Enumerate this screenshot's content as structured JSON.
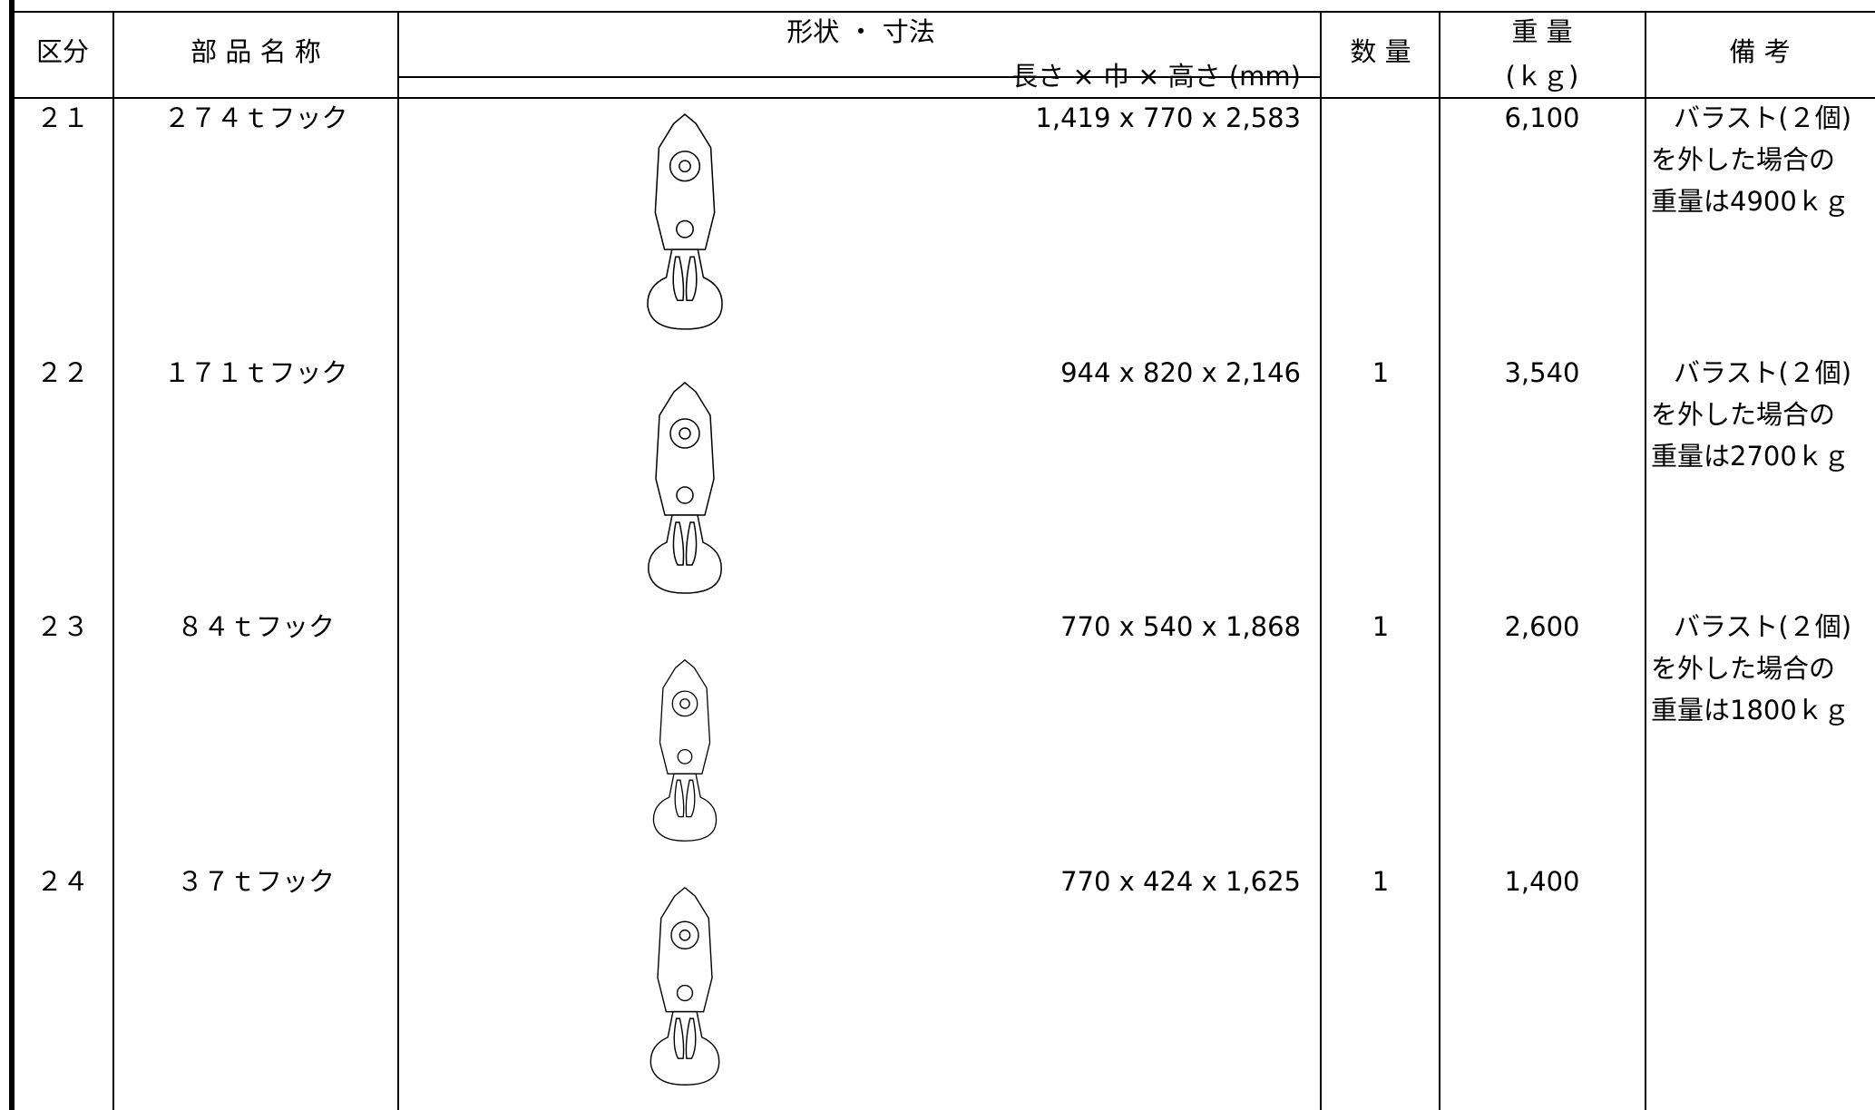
{
  "header": {
    "kubun": "区分",
    "name": "部 品 名 称",
    "shape": "形状 ・ 寸法",
    "dims": "長さ × 巾 × 高さ (mm)",
    "qty": "数 量",
    "weight": "重 量",
    "weight_unit": "(ｋｇ)",
    "remarks": "備 考"
  },
  "rows": [
    {
      "kubun": "２１",
      "name": "２７４ｔフック",
      "dims": "1,419 x 770 x 2,583",
      "weight": "6,100",
      "remarks": [
        "バラスト(２個)",
        "を外した場合の",
        "重量は4900ｋｇ"
      ]
    },
    {
      "kubun": "２２",
      "name": "１７１ｔフック",
      "dims": "944 x 820 x 2,146",
      "qty": "1",
      "weight": "3,540",
      "remarks": [
        "バラスト(２個)",
        "を外した場合の",
        "重量は2700ｋｇ"
      ]
    },
    {
      "kubun": "２３",
      "name": "８４ｔフック",
      "dims": "770 x 540 x 1,868",
      "qty": "1",
      "weight": "2,600",
      "remarks": [
        "バラスト(２個)",
        "を外した場合の",
        "重量は1800ｋｇ"
      ]
    },
    {
      "kubun": "２４",
      "name": "３７ｔフック",
      "dims": "770 x 424 x 1,625",
      "qty": "1",
      "weight": "1,400"
    }
  ]
}
